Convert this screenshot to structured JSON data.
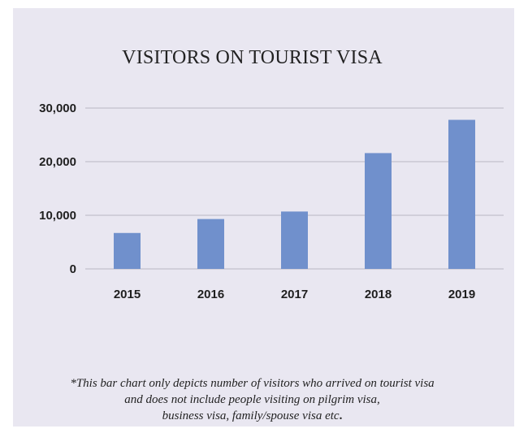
{
  "chart_data": {
    "type": "bar",
    "title": "VISITORS ON TOURIST VISA",
    "xlabel": "",
    "ylabel": "",
    "categories": [
      "2015",
      "2016",
      "2017",
      "2018",
      "2019"
    ],
    "values": [
      6700,
      9300,
      10700,
      21600,
      27800
    ],
    "ylim": [
      0,
      30000
    ],
    "yticks": [
      0,
      10000,
      20000,
      30000
    ],
    "ytick_labels": [
      "0",
      "10,000",
      "20,000",
      "30,000"
    ],
    "grid": true,
    "legend": "none",
    "colors": {
      "bar": "#7090cc",
      "background": "#e9e7f1",
      "grid": "#b9b7c4",
      "text": "#222222"
    }
  },
  "footnote": {
    "line1": "*This bar chart only depicts number of visitors who arrived on tourist visa",
    "line2": "and does not include people visiting on pilgrim visa,",
    "line3_text": "business visa, family/spouse visa etc",
    "line3_end": "."
  }
}
